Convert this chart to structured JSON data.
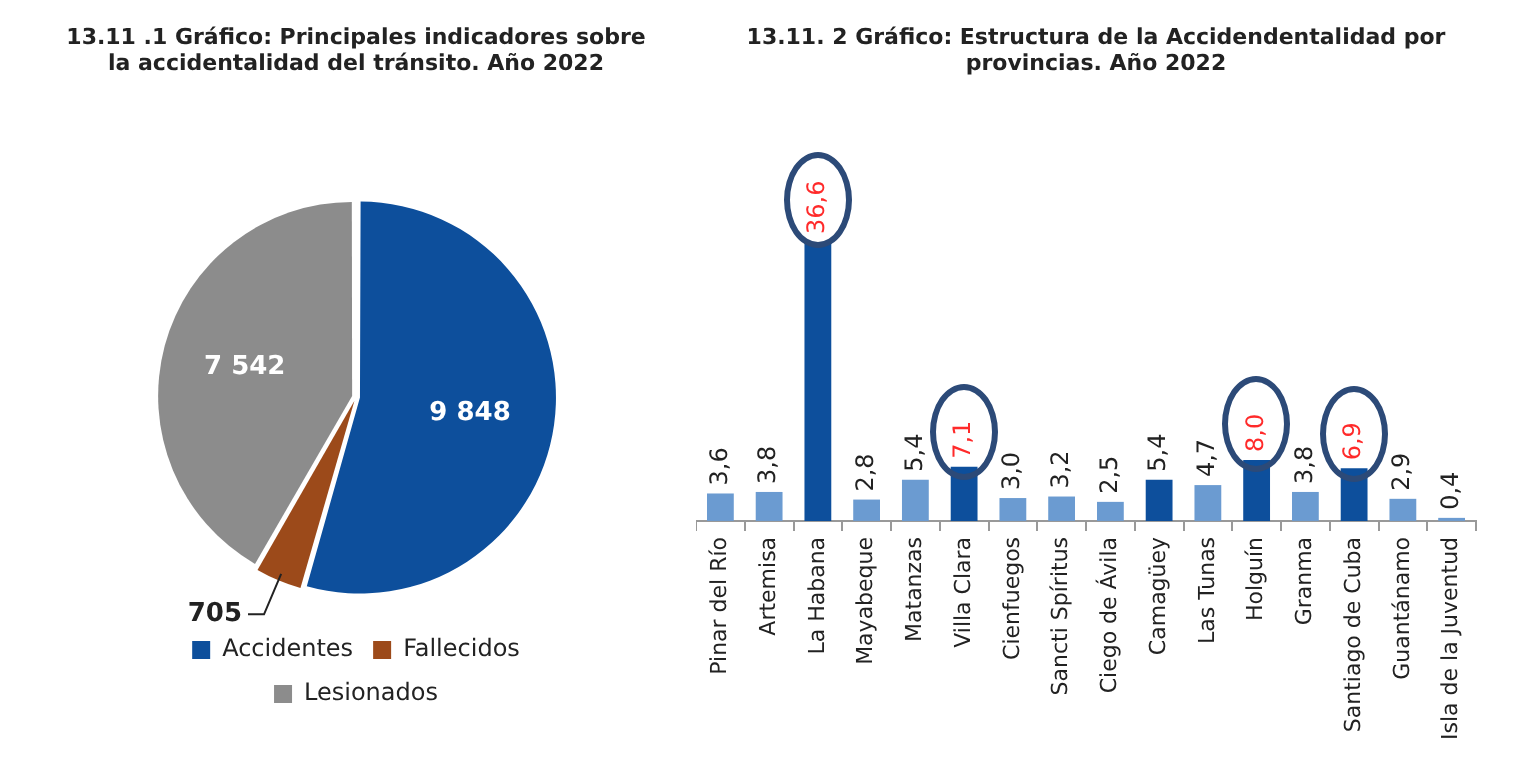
{
  "chart_data": [
    {
      "type": "pie",
      "title": "13.11 .1 Gráfico: Principales indicadores sobre la accidentalidad del tránsito. Año 2022",
      "categories": [
        "Accidentes",
        "Fallecidos",
        "Lesionados"
      ],
      "values": [
        9848,
        705,
        7542
      ],
      "colors": [
        "#0d4f9c",
        "#9c4a1a",
        "#8c8c8c"
      ],
      "value_labels": [
        "9 848",
        "705",
        "7 542"
      ],
      "legend": "bottom"
    },
    {
      "type": "bar",
      "title": "13.11. 2 Gráfico: Estructura de la Accidendentalidad por provincias. Año 2022",
      "categories": [
        "Pinar del Río",
        "Artemisa",
        "La Habana",
        "Mayabeque",
        "Matanzas",
        "Villa Clara",
        "Cienfuegos",
        "Sancti Spíritus",
        "Ciego de Ávila",
        "Camagüey",
        "Las Tunas",
        "Holguín",
        "Granma",
        "Santiago de Cuba",
        "Guantánamo",
        "Isla de la Juventud"
      ],
      "values": [
        3.6,
        3.8,
        36.6,
        2.8,
        5.4,
        7.1,
        3.0,
        3.2,
        2.5,
        5.4,
        4.7,
        8.0,
        3.8,
        6.9,
        2.9,
        0.4
      ],
      "colors": [
        "#6b9bd1",
        "#6b9bd1",
        "#0d4f9c",
        "#6b9bd1",
        "#6b9bd1",
        "#0d4f9c",
        "#6b9bd1",
        "#6b9bd1",
        "#6b9bd1",
        "#0d4f9c",
        "#6b9bd1",
        "#0d4f9c",
        "#6b9bd1",
        "#0d4f9c",
        "#6b9bd1",
        "#6b9bd1"
      ],
      "value_labels": [
        "3,6",
        "3,8",
        "36,6",
        "2,8",
        "5,4",
        "7,1",
        "3,0",
        "3,2",
        "2,5",
        "5,4",
        "4,7",
        "8,0",
        "3,8",
        "6,9",
        "2,9",
        "0,4"
      ],
      "legend": false
    }
  ]
}
